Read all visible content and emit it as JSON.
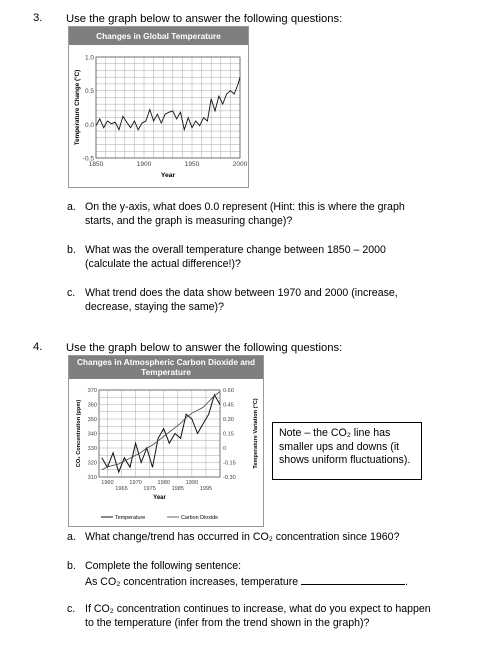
{
  "q3": {
    "number": "3.",
    "instruction": "Use the graph below to answer the following questions:",
    "a_prefix": "a.",
    "a_line1": "On the y-axis, what does 0.0 represent (Hint: this is where the graph",
    "a_line2": "starts, and the graph is measuring change)?",
    "b_prefix": "b.",
    "b_line1": "What was the overall temperature change between 1850 – 2000",
    "b_line2": "(calculate the actual difference!)?",
    "c_prefix": "c.",
    "c_line1": "What trend does the data show between 1970 and 2000 (increase,",
    "c_line2": "decrease, staying the same)?"
  },
  "q4": {
    "number": "4.",
    "instruction": "Use the graph below to answer the following questions:",
    "note_line1": "Note – the CO₂ line has",
    "note_line2": "smaller ups and downs (it",
    "note_line3": "shows uniform fluctuations).",
    "a_prefix": "a.",
    "a_line1": "What change/trend has occurred in CO₂ concentration since 1960?",
    "b_prefix": "b.",
    "b_line1": "Complete the following sentence:",
    "b_line2": "As CO₂ concentration increases, temperature",
    "b_line2_end": ".",
    "c_prefix": "c.",
    "c_line1": "If CO₂ concentration continues to increase, what do you expect to happen",
    "c_line2": "to the temperature (infer from the trend shown in the graph)?"
  },
  "chart_data": [
    {
      "type": "line",
      "title": "Changes in Global Temperature",
      "xlabel": "Year",
      "ylabel": "Temperature Change (°C)",
      "xlim": [
        1850,
        2000
      ],
      "ylim": [
        -0.5,
        1.0
      ],
      "x_ticks": [
        "1850",
        "1900",
        "1950",
        "2000"
      ],
      "y_ticks": [
        "1.0",
        "0.5",
        "0.0",
        "-0.5"
      ],
      "grid": true,
      "series": [
        {
          "x": [
            1850,
            1854,
            1858,
            1862,
            1866,
            1870,
            1874,
            1878,
            1882,
            1886,
            1890,
            1894,
            1898,
            1902,
            1906,
            1910,
            1914,
            1918,
            1922,
            1926,
            1930,
            1934,
            1938,
            1942,
            1946,
            1950,
            1954,
            1958,
            1962,
            1966,
            1970,
            1974,
            1978,
            1982,
            1986,
            1990,
            1994,
            1998,
            2000
          ],
          "values": [
            -0.02,
            0.08,
            -0.05,
            0.05,
            0.01,
            0.03,
            -0.08,
            0.12,
            0.03,
            -0.05,
            0.05,
            -0.08,
            0.02,
            0.05,
            0.22,
            0.05,
            0.15,
            0.02,
            0.15,
            0.18,
            0.2,
            0.08,
            0.18,
            -0.08,
            0.1,
            -0.05,
            0.05,
            -0.02,
            0.1,
            0.05,
            0.38,
            0.2,
            0.42,
            0.3,
            0.45,
            0.5,
            0.45,
            0.6,
            0.7
          ]
        }
      ]
    },
    {
      "type": "line",
      "title": "Changes in Atmospheric Carbon Dioxide and Temperature",
      "xlabel": "Year",
      "ylabel": "CO₂ Concentration (ppm)",
      "ylabel_right": "Temperature Variation (°C)",
      "xlim": [
        1957,
        2000
      ],
      "ylim": [
        310,
        370
      ],
      "ylim_right": [
        -0.3,
        0.6
      ],
      "x_ticks_top": [
        "1960",
        "1970",
        "1980",
        "1990"
      ],
      "x_ticks_bottom": [
        "1965",
        "1975",
        "1985",
        "1995"
      ],
      "y_ticks": [
        "370",
        "360",
        "350",
        "340",
        "330",
        "320",
        "310"
      ],
      "y_ticks_right": [
        "0.60",
        "0.45",
        "0.30",
        "0.15",
        "0",
        "-0.15",
        "-0.30"
      ],
      "legend": "bottom",
      "grid": true,
      "series": [
        {
          "name": "Temperature",
          "x": [
            1958,
            1960,
            1962,
            1964,
            1966,
            1968,
            1970,
            1972,
            1974,
            1976,
            1978,
            1980,
            1982,
            1984,
            1986,
            1988,
            1990,
            1992,
            1994,
            1996,
            1998,
            2000
          ],
          "values": [
            -0.1,
            -0.2,
            -0.05,
            -0.25,
            -0.1,
            -0.2,
            0.05,
            -0.15,
            0.0,
            -0.2,
            0.1,
            0.2,
            0.05,
            0.15,
            0.1,
            0.35,
            0.3,
            0.15,
            0.25,
            0.35,
            0.55,
            0.45
          ]
        },
        {
          "name": "Carbon Dioxide",
          "x": [
            1958,
            1960,
            1962,
            1964,
            1966,
            1968,
            1970,
            1972,
            1974,
            1976,
            1978,
            1980,
            1982,
            1984,
            1986,
            1988,
            1990,
            1992,
            1994,
            1996,
            1998,
            2000
          ],
          "values": [
            315,
            317,
            318,
            319,
            321,
            323,
            325,
            327,
            330,
            332,
            335,
            338,
            341,
            344,
            347,
            351,
            354,
            356,
            358,
            362,
            366,
            369
          ]
        }
      ]
    }
  ]
}
